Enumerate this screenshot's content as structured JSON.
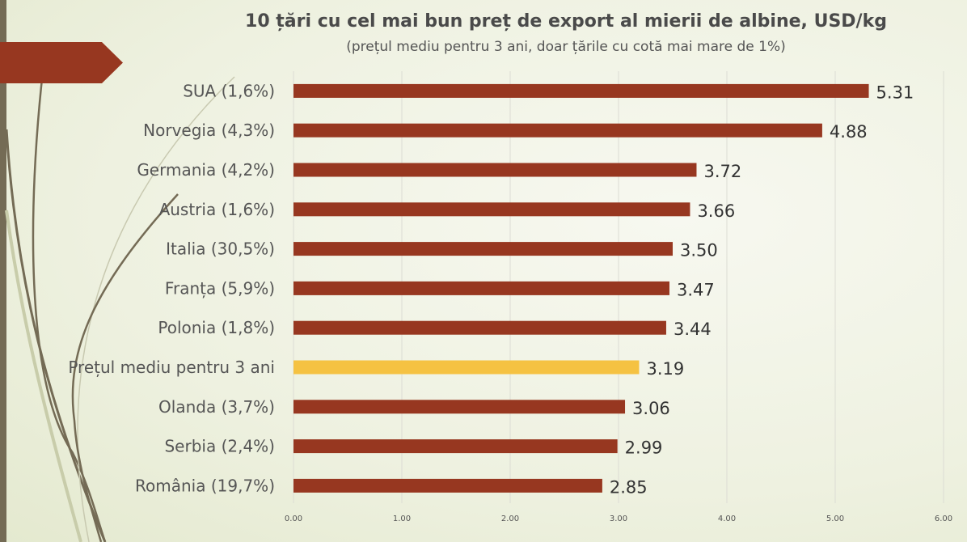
{
  "chart_data": {
    "type": "bar",
    "orientation": "horizontal",
    "title": "10 țări cu cel mai bun preț de export al mierii de albine, USD/kg",
    "subtitle": "(prețul mediu pentru 3 ani, doar țările cu cotă mai mare de 1%)",
    "categories": [
      "SUA (1,6%)",
      "Norvegia (4,3%)",
      "Germania (4,2%)",
      "Austria (1,6%)",
      "Italia (30,5%)",
      "Franța (5,9%)",
      "Polonia (1,8%)",
      "Prețul mediu pentru 3 ani",
      "Olanda (3,7%)",
      "Serbia (2,4%)",
      "România (19,7%)"
    ],
    "values": [
      5.31,
      4.88,
      3.72,
      3.66,
      3.5,
      3.47,
      3.44,
      3.19,
      3.06,
      2.99,
      2.85
    ],
    "value_labels": [
      "5.31",
      "4.88",
      "3.72",
      "3.66",
      "3.50",
      "3.47",
      "3.44",
      "3.19",
      "3.06",
      "2.99",
      "2.85"
    ],
    "highlight_index": 7,
    "xlim": [
      0,
      6
    ],
    "ticks": [
      "0.00",
      "1.00",
      "2.00",
      "3.00",
      "4.00",
      "5.00",
      "6.00"
    ],
    "grid": true,
    "colors": {
      "bar": "#973720",
      "highlight": "#f5c242"
    }
  }
}
